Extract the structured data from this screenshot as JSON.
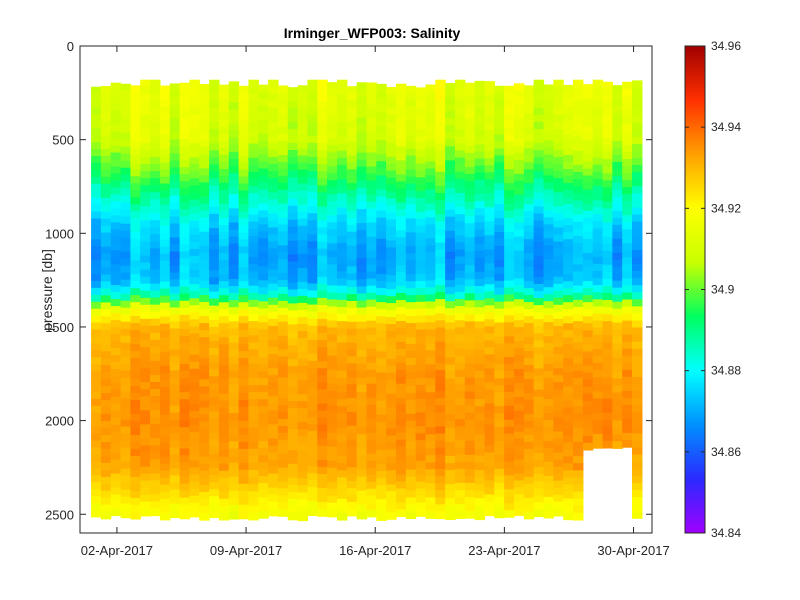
{
  "chart_data": {
    "type": "heatmap",
    "title": "Irminger_WFP003:  Salinity",
    "xlabel": "",
    "ylabel": "pressure [db]",
    "x_type": "date",
    "x_range": [
      "2017-03-31",
      "2017-05-01"
    ],
    "x_ticks": [
      {
        "date": "2017-04-02",
        "label": "02-Apr-2017"
      },
      {
        "date": "2017-04-09",
        "label": "09-Apr-2017"
      },
      {
        "date": "2017-04-16",
        "label": "16-Apr-2017"
      },
      {
        "date": "2017-04-23",
        "label": "23-Apr-2017"
      },
      {
        "date": "2017-04-30",
        "label": "30-Apr-2017"
      }
    ],
    "y_range": [
      0,
      2600
    ],
    "y_reversed": true,
    "y_ticks": [
      {
        "value": 0,
        "label": "0"
      },
      {
        "value": 500,
        "label": "500"
      },
      {
        "value": 1000,
        "label": "1000"
      },
      {
        "value": 1500,
        "label": "1500"
      },
      {
        "value": 2000,
        "label": "2000"
      },
      {
        "value": 2500,
        "label": "2500"
      }
    ],
    "colorbar": {
      "range": [
        34.84,
        34.96
      ],
      "ticks": [
        {
          "value": 34.84,
          "label": "34.84"
        },
        {
          "value": 34.86,
          "label": "34.86"
        },
        {
          "value": 34.88,
          "label": "34.88"
        },
        {
          "value": 34.9,
          "label": "34.9"
        },
        {
          "value": 34.92,
          "label": "34.92"
        },
        {
          "value": 34.94,
          "label": "34.94"
        },
        {
          "value": 34.96,
          "label": "34.96"
        }
      ],
      "colormap": [
        "#a000ff",
        "#2a2aff",
        "#0090ff",
        "#00ffff",
        "#00ff60",
        "#c8ff00",
        "#ffff00",
        "#ffa000",
        "#ff3000",
        "#a00000"
      ]
    },
    "grid": false,
    "profile_start_pressure_db": 180,
    "profile_end_pressure_db": 2520,
    "gap": {
      "start": "2017-04-27",
      "end": "2017-04-29",
      "pressure_from": 2150,
      "pressure_to": 2520
    },
    "salinity_profile": [
      {
        "pressure": 200,
        "salinity": 34.914
      },
      {
        "pressure": 500,
        "salinity": 34.911
      },
      {
        "pressure": 650,
        "salinity": 34.9
      },
      {
        "pressure": 800,
        "salinity": 34.888
      },
      {
        "pressure": 950,
        "salinity": 34.876
      },
      {
        "pressure": 1100,
        "salinity": 34.87
      },
      {
        "pressure": 1250,
        "salinity": 34.872
      },
      {
        "pressure": 1330,
        "salinity": 34.885
      },
      {
        "pressure": 1400,
        "salinity": 34.915
      },
      {
        "pressure": 1500,
        "salinity": 34.93
      },
      {
        "pressure": 1750,
        "salinity": 34.934
      },
      {
        "pressure": 2000,
        "salinity": 34.935
      },
      {
        "pressure": 2250,
        "salinity": 34.933
      },
      {
        "pressure": 2400,
        "salinity": 34.924
      },
      {
        "pressure": 2520,
        "salinity": 34.917
      }
    ]
  }
}
